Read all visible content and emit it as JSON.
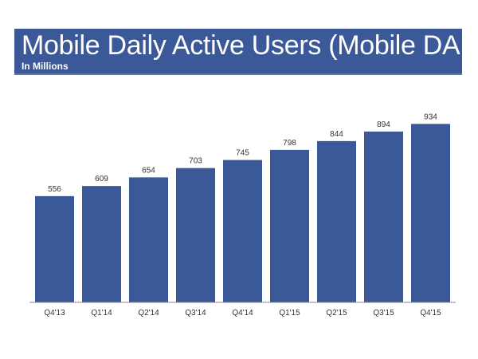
{
  "header": {
    "title": "Mobile Daily Active Users (Mobile DAUs)",
    "subtitle": "In Millions"
  },
  "colors": {
    "bar": "#3b5998",
    "banner": "#3b5998",
    "axis": "#888888",
    "label": "#333333"
  },
  "chart_data": {
    "type": "bar",
    "title": "Mobile Daily Active Users (Mobile DAUs)",
    "subtitle": "In Millions",
    "categories": [
      "Q4'13",
      "Q1'14",
      "Q2'14",
      "Q3'14",
      "Q4'14",
      "Q1'15",
      "Q2'15",
      "Q3'15",
      "Q4'15"
    ],
    "values": [
      556,
      609,
      654,
      703,
      745,
      798,
      844,
      894,
      934
    ],
    "ylim": [
      0,
      1000
    ],
    "grid": false,
    "data_labels": true
  }
}
